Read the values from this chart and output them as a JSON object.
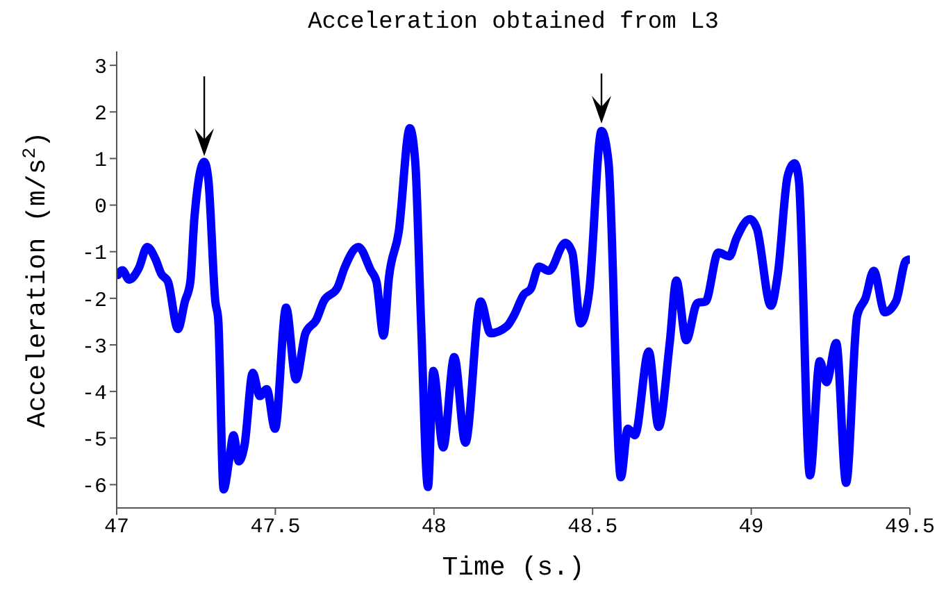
{
  "chart_data": {
    "type": "line",
    "title": "Acceleration obtained from L3",
    "xlabel": "Time (s.)",
    "ylabel": "Acceleration (m/s$^{2}$)",
    "xlim": [
      47,
      49.5
    ],
    "xticks": [
      47,
      47.5,
      48,
      48.5,
      49,
      49.5
    ],
    "ylim": [
      -6.5,
      3.3
    ],
    "yticks": [
      -6,
      -5,
      -4,
      -3,
      -2,
      -1,
      0,
      1,
      2,
      3
    ],
    "grid": false,
    "legend": false,
    "marker": "none",
    "line_style": "solid",
    "x": [
      47.004,
      47.018,
      47.039,
      47.07,
      47.096,
      47.123,
      47.14,
      47.162,
      47.193,
      47.215,
      47.232,
      47.245,
      47.276,
      47.289,
      47.311,
      47.32,
      47.337,
      47.355,
      47.368,
      47.385,
      47.403,
      47.429,
      47.451,
      47.473,
      47.499,
      47.534,
      47.565,
      47.595,
      47.63,
      47.652,
      47.696,
      47.718,
      47.762,
      47.801,
      47.819,
      47.841,
      47.858,
      47.889,
      47.924,
      47.941,
      47.959,
      47.981,
      47.998,
      48.029,
      48.064,
      48.099,
      48.147,
      48.178,
      48.23,
      48.252,
      48.283,
      48.305,
      48.331,
      48.362,
      48.414,
      48.436,
      48.462,
      48.489,
      48.528,
      48.55,
      48.589,
      48.611,
      48.633,
      48.677,
      48.708,
      48.743,
      48.764,
      48.795,
      48.83,
      48.856,
      48.896,
      48.931,
      48.953,
      48.996,
      49.018,
      49.062,
      49.084,
      49.115,
      49.137,
      49.15,
      49.185,
      49.216,
      49.237,
      49.268,
      49.299,
      49.334,
      49.36,
      49.386,
      49.421,
      49.456,
      49.487,
      49.496
    ],
    "series": [
      {
        "color": "#0000ff",
        "values": [
          -1.5,
          -1.4,
          -1.6,
          -1.35,
          -0.9,
          -1.17,
          -1.47,
          -1.65,
          -2.66,
          -2.07,
          -1.65,
          -0.27,
          0.93,
          0.54,
          -2.07,
          -2.45,
          -6.1,
          -5.45,
          -4.94,
          -5.5,
          -5.15,
          -3.6,
          -4.1,
          -3.95,
          -4.8,
          -2.2,
          -3.74,
          -2.75,
          -2.45,
          -2.07,
          -1.77,
          -1.35,
          -0.9,
          -1.4,
          -1.65,
          -2.8,
          -1.56,
          -0.57,
          1.65,
          0.93,
          -2.45,
          -6.05,
          -3.56,
          -5.2,
          -3.26,
          -5.1,
          -2.07,
          -2.75,
          -2.6,
          -2.37,
          -1.92,
          -1.8,
          -1.32,
          -1.41,
          -0.81,
          -1.02,
          -2.54,
          -1.86,
          1.59,
          0.93,
          -5.84,
          -4.8,
          -4.94,
          -3.14,
          -4.76,
          -2.96,
          -1.62,
          -2.9,
          -2.1,
          -2.07,
          -1.02,
          -1.1,
          -0.72,
          -0.3,
          -0.51,
          -2.16,
          -1.47,
          0.63,
          0.9,
          0.54,
          -5.8,
          -3.35,
          -3.8,
          -2.96,
          -5.96,
          -2.37,
          -2,
          -1.41,
          -2.3,
          -2.07,
          -1.2,
          -1.17
        ]
      }
    ]
  }
}
